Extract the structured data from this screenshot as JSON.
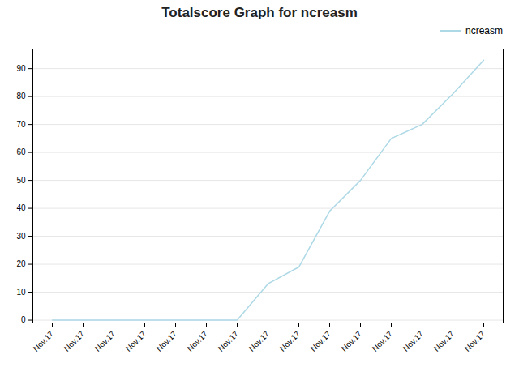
{
  "chart_data": {
    "type": "line",
    "title": "Totalscore Graph for ncreasm",
    "categories": [
      "Nov.17",
      "Nov.17",
      "Nov.17",
      "Nov.17",
      "Nov.17",
      "Nov.17",
      "Nov.17",
      "Nov.17",
      "Nov.17",
      "Nov.17",
      "Nov.17",
      "Nov.17",
      "Nov.17",
      "Nov.17",
      "Nov.17"
    ],
    "series": [
      {
        "name": "ncreasm",
        "color": "#add8e6",
        "values": [
          0,
          0,
          0,
          0,
          0,
          0,
          0,
          13,
          19,
          39,
          50,
          65,
          70,
          81,
          93
        ]
      }
    ],
    "ylim": [
      -1,
      97
    ],
    "yticks": [
      0,
      10,
      20,
      30,
      40,
      50,
      60,
      70,
      80,
      90
    ],
    "grid": true,
    "legend": "upper right"
  }
}
